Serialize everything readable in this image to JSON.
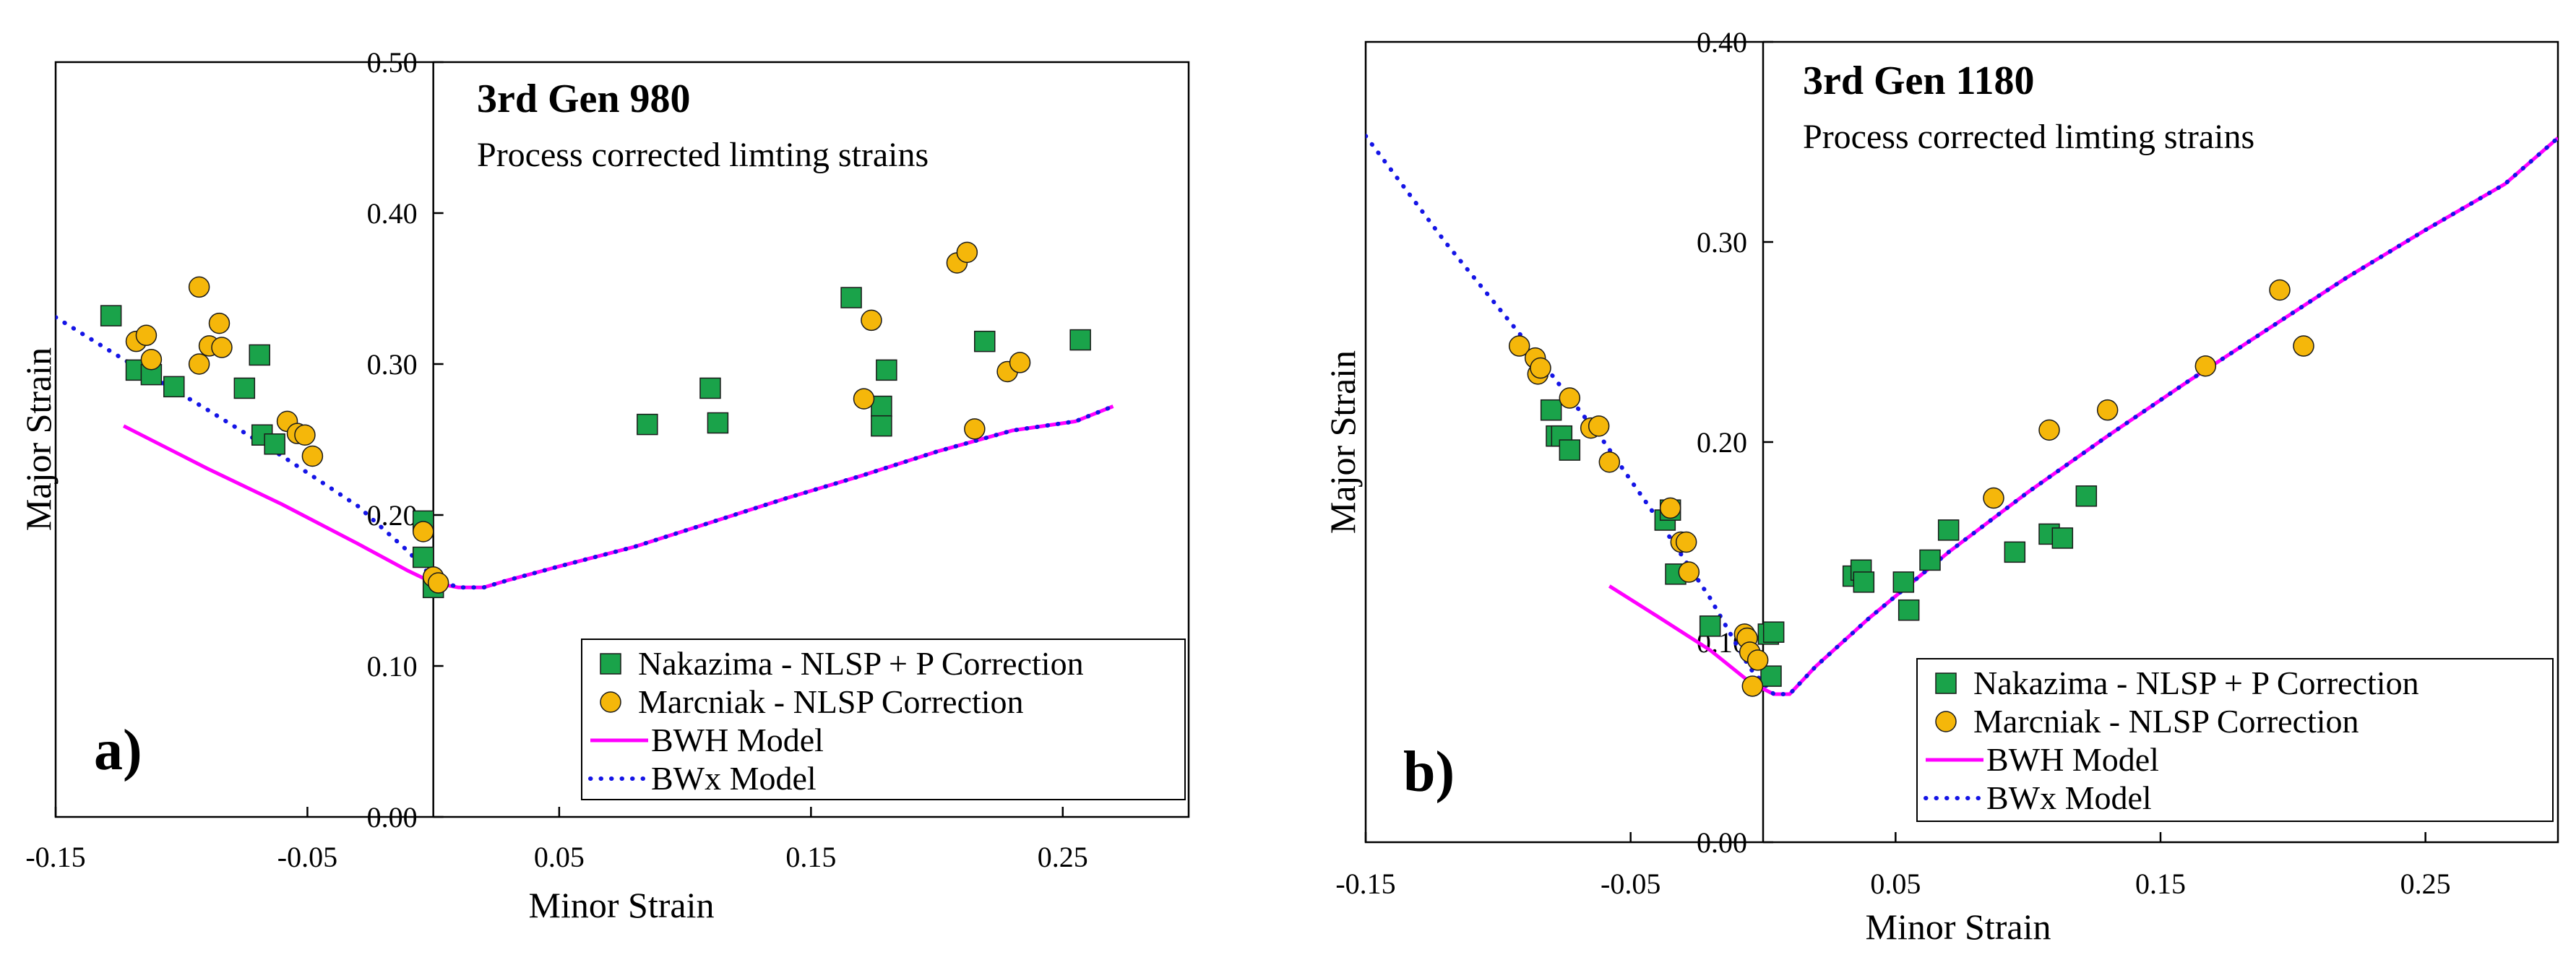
{
  "chart_data": [
    {
      "type": "scatter",
      "panel_label": "a)",
      "title": "3rd Gen 980",
      "subtitle": "Process corrected limting strains",
      "xlabel": "Minor Strain",
      "ylabel": "Major Strain",
      "xlim": [
        -0.15,
        0.3
      ],
      "ylim": [
        0.0,
        0.5
      ],
      "xticks": [
        -0.15,
        -0.05,
        0.05,
        0.15,
        0.25
      ],
      "xtick_labels": [
        "-0.15",
        "-0.05",
        "0.05",
        "0.15",
        "0.25"
      ],
      "yticks": [
        0.0,
        0.1,
        0.2,
        0.3,
        0.4,
        0.5
      ],
      "ytick_labels": [
        "0.00",
        "0.10",
        "0.20",
        "0.30",
        "0.40",
        "0.50"
      ],
      "grid": false,
      "legend": [
        "Nakazima - NLSP + P Correction",
        "Marcniak - NLSP Correction",
        "BWH Model",
        "BWx Model"
      ],
      "legend_position": "bottom-right",
      "series": [
        {
          "name": "Nakazima - NLSP + P Correction",
          "marker": "square",
          "color": "#1aa34a",
          "points": [
            [
              -0.128,
              0.332
            ],
            [
              -0.118,
              0.296
            ],
            [
              -0.112,
              0.293
            ],
            [
              -0.103,
              0.285
            ],
            [
              -0.075,
              0.284
            ],
            [
              -0.069,
              0.306
            ],
            [
              -0.068,
              0.253
            ],
            [
              -0.063,
              0.247
            ],
            [
              -0.004,
              0.196
            ],
            [
              -0.004,
              0.172
            ],
            [
              0.0,
              0.152
            ],
            [
              0.085,
              0.26
            ],
            [
              0.11,
              0.284
            ],
            [
              0.113,
              0.261
            ],
            [
              0.166,
              0.344
            ],
            [
              0.178,
              0.272
            ],
            [
              0.178,
              0.259
            ],
            [
              0.18,
              0.296
            ],
            [
              0.219,
              0.315
            ],
            [
              0.257,
              0.316
            ]
          ]
        },
        {
          "name": "Marcniak - NLSP Correction",
          "marker": "circle",
          "color": "#f5b70a",
          "points": [
            [
              -0.118,
              0.315
            ],
            [
              -0.114,
              0.319
            ],
            [
              -0.112,
              0.303
            ],
            [
              -0.093,
              0.351
            ],
            [
              -0.093,
              0.3
            ],
            [
              -0.089,
              0.312
            ],
            [
              -0.085,
              0.327
            ],
            [
              -0.084,
              0.311
            ],
            [
              -0.058,
              0.262
            ],
            [
              -0.054,
              0.254
            ],
            [
              -0.051,
              0.253
            ],
            [
              -0.048,
              0.239
            ],
            [
              -0.004,
              0.189
            ],
            [
              0.0,
              0.159
            ],
            [
              0.002,
              0.155
            ],
            [
              0.171,
              0.277
            ],
            [
              0.174,
              0.329
            ],
            [
              0.208,
              0.367
            ],
            [
              0.212,
              0.374
            ],
            [
              0.215,
              0.257
            ],
            [
              0.228,
              0.295
            ],
            [
              0.233,
              0.301
            ]
          ]
        },
        {
          "name": "BWH Model",
          "style": "solid",
          "color": "#ff00ff",
          "points": [
            [
              -0.123,
              0.259
            ],
            [
              -0.09,
              0.231
            ],
            [
              -0.06,
              0.207
            ],
            [
              -0.03,
              0.181
            ],
            [
              -0.01,
              0.163
            ],
            [
              0.0,
              0.155
            ],
            [
              0.01,
              0.152
            ],
            [
              0.02,
              0.152
            ],
            [
              0.03,
              0.157
            ],
            [
              0.05,
              0.166
            ],
            [
              0.08,
              0.179
            ],
            [
              0.11,
              0.195
            ],
            [
              0.14,
              0.211
            ],
            [
              0.17,
              0.226
            ],
            [
              0.2,
              0.242
            ],
            [
              0.23,
              0.256
            ],
            [
              0.255,
              0.262
            ],
            [
              0.27,
              0.272
            ]
          ]
        },
        {
          "name": "BWx Model",
          "style": "dotted",
          "color": "#1414e6",
          "points": [
            [
              -0.15,
              0.331
            ],
            [
              -0.12,
              0.3
            ],
            [
              -0.09,
              0.27
            ],
            [
              -0.06,
              0.239
            ],
            [
              -0.03,
              0.206
            ],
            [
              -0.01,
              0.176
            ],
            [
              0.0,
              0.158
            ],
            [
              0.01,
              0.152
            ],
            [
              0.02,
              0.152
            ],
            [
              0.03,
              0.157
            ],
            [
              0.05,
              0.166
            ],
            [
              0.08,
              0.179
            ],
            [
              0.11,
              0.195
            ],
            [
              0.14,
              0.211
            ],
            [
              0.17,
              0.226
            ],
            [
              0.2,
              0.242
            ],
            [
              0.23,
              0.256
            ],
            [
              0.255,
              0.262
            ],
            [
              0.27,
              0.272
            ]
          ]
        }
      ]
    },
    {
      "type": "scatter",
      "panel_label": "b)",
      "title": "3rd Gen 1180",
      "subtitle": "Process corrected limting strains",
      "xlabel": "Minor Strain",
      "ylabel": "Major Strain",
      "xlim": [
        -0.15,
        0.3
      ],
      "ylim": [
        0.0,
        0.4
      ],
      "xticks": [
        -0.15,
        -0.05,
        0.05,
        0.15,
        0.25
      ],
      "xtick_labels": [
        "-0.15",
        "-0.05",
        "0.05",
        "0.15",
        "0.25"
      ],
      "yticks": [
        0.0,
        0.1,
        0.2,
        0.3,
        0.4
      ],
      "ytick_labels": [
        "0.00",
        "0.10",
        "0.20",
        "0.30",
        "0.40"
      ],
      "grid": false,
      "legend": [
        "Nakazima - NLSP + P Correction",
        "Marcniak - NLSP Correction",
        "BWH Model",
        "BWx Model"
      ],
      "legend_position": "bottom-right",
      "series": [
        {
          "name": "Nakazima - NLSP + P Correction",
          "marker": "square",
          "color": "#1aa34a",
          "points": [
            [
              -0.08,
              0.216
            ],
            [
              -0.078,
              0.203
            ],
            [
              -0.076,
              0.203
            ],
            [
              -0.073,
              0.196
            ],
            [
              -0.037,
              0.161
            ],
            [
              -0.035,
              0.166
            ],
            [
              -0.033,
              0.134
            ],
            [
              -0.02,
              0.108
            ],
            [
              0.002,
              0.104
            ],
            [
              0.003,
              0.083
            ],
            [
              0.004,
              0.105
            ],
            [
              0.034,
              0.133
            ],
            [
              0.037,
              0.136
            ],
            [
              0.038,
              0.13
            ],
            [
              0.053,
              0.13
            ],
            [
              0.055,
              0.116
            ],
            [
              0.063,
              0.141
            ],
            [
              0.07,
              0.156
            ],
            [
              0.095,
              0.145
            ],
            [
              0.108,
              0.154
            ],
            [
              0.113,
              0.152
            ],
            [
              0.122,
              0.173
            ]
          ]
        },
        {
          "name": "Marcniak - NLSP Correction",
          "marker": "circle",
          "color": "#f5b70a",
          "points": [
            [
              -0.092,
              0.248
            ],
            [
              -0.086,
              0.242
            ],
            [
              -0.085,
              0.234
            ],
            [
              -0.084,
              0.237
            ],
            [
              -0.073,
              0.222
            ],
            [
              -0.065,
              0.207
            ],
            [
              -0.062,
              0.208
            ],
            [
              -0.058,
              0.19
            ],
            [
              -0.035,
              0.167
            ],
            [
              -0.031,
              0.15
            ],
            [
              -0.029,
              0.15
            ],
            [
              -0.028,
              0.135
            ],
            [
              -0.007,
              0.104
            ],
            [
              -0.006,
              0.102
            ],
            [
              -0.005,
              0.095
            ],
            [
              -0.004,
              0.078
            ],
            [
              -0.002,
              0.091
            ],
            [
              0.087,
              0.172
            ],
            [
              0.108,
              0.206
            ],
            [
              0.13,
              0.216
            ],
            [
              0.167,
              0.238
            ],
            [
              0.195,
              0.276
            ],
            [
              0.204,
              0.248
            ]
          ]
        },
        {
          "name": "BWH Model",
          "style": "solid",
          "color": "#ff00ff",
          "points": [
            [
              -0.058,
              0.128
            ],
            [
              -0.04,
              0.113
            ],
            [
              -0.02,
              0.096
            ],
            [
              -0.005,
              0.08
            ],
            [
              0.004,
              0.074
            ],
            [
              0.01,
              0.074
            ],
            [
              0.02,
              0.088
            ],
            [
              0.04,
              0.112
            ],
            [
              0.07,
              0.145
            ],
            [
              0.1,
              0.175
            ],
            [
              0.13,
              0.203
            ],
            [
              0.16,
              0.23
            ],
            [
              0.19,
              0.256
            ],
            [
              0.22,
              0.282
            ],
            [
              0.25,
              0.306
            ],
            [
              0.28,
              0.329
            ],
            [
              0.3,
              0.352
            ]
          ]
        },
        {
          "name": "BWx Model",
          "style": "dotted",
          "color": "#1414e6",
          "points": [
            [
              -0.15,
              0.353
            ],
            [
              -0.12,
              0.3
            ],
            [
              -0.09,
              0.251
            ],
            [
              -0.06,
              0.2
            ],
            [
              -0.04,
              0.162
            ],
            [
              -0.02,
              0.122
            ],
            [
              -0.005,
              0.087
            ],
            [
              0.004,
              0.074
            ],
            [
              0.01,
              0.074
            ],
            [
              0.02,
              0.088
            ],
            [
              0.04,
              0.112
            ],
            [
              0.07,
              0.145
            ],
            [
              0.1,
              0.175
            ],
            [
              0.13,
              0.203
            ],
            [
              0.16,
              0.23
            ],
            [
              0.19,
              0.256
            ],
            [
              0.22,
              0.282
            ],
            [
              0.25,
              0.306
            ],
            [
              0.28,
              0.329
            ],
            [
              0.3,
              0.352
            ]
          ]
        }
      ]
    }
  ]
}
